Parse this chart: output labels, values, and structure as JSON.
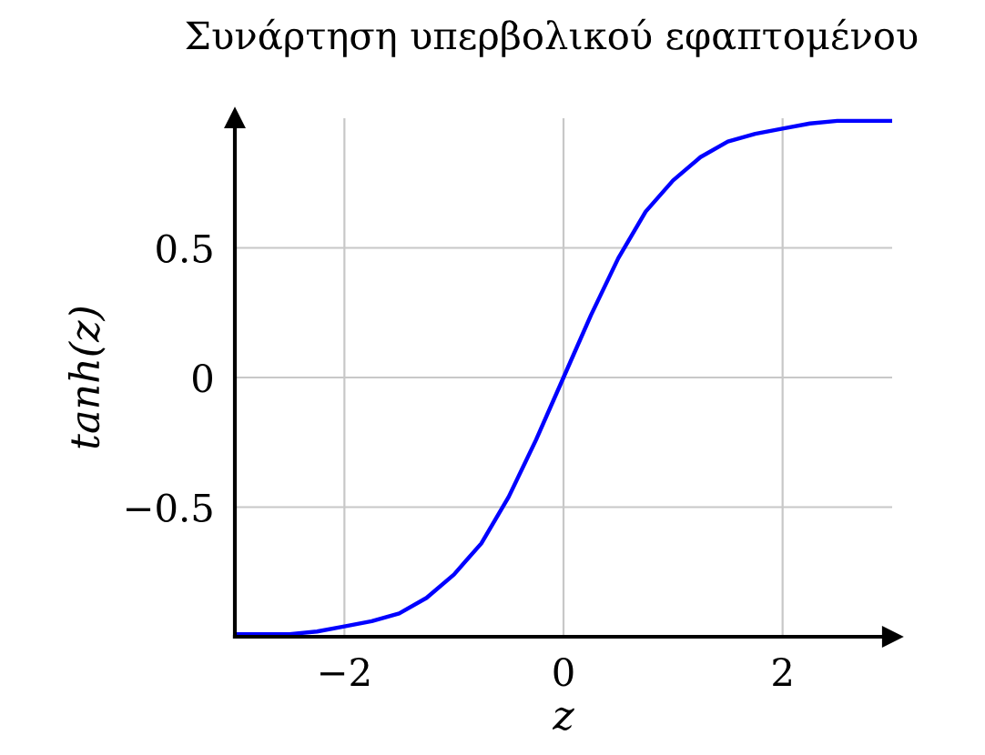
{
  "chart_data": {
    "type": "line",
    "title": "Συνάρτηση υπερβολικού εφαπτομένου",
    "xlabel": "z",
    "ylabel": "tanh(z)",
    "x": [
      -3,
      -2.75,
      -2.5,
      -2.25,
      -2,
      -1.75,
      -1.5,
      -1.25,
      -1,
      -0.75,
      -0.5,
      -0.25,
      0,
      0.25,
      0.5,
      0.75,
      1,
      1.25,
      1.5,
      1.75,
      2,
      2.25,
      2.5,
      2.75,
      3
    ],
    "series": [
      {
        "color": "#0000ff",
        "values": [
          -0.99,
          -0.99,
          -0.99,
          -0.98,
          -0.96,
          -0.94,
          -0.91,
          -0.85,
          -0.76,
          -0.64,
          -0.46,
          -0.24,
          0,
          0.24,
          0.46,
          0.64,
          0.76,
          0.85,
          0.91,
          0.94,
          0.96,
          0.98,
          0.99,
          0.99,
          0.99
        ]
      }
    ],
    "xlim": [
      -3,
      3
    ],
    "ylim": [
      -1,
      1
    ],
    "xticks": [
      {
        "value": -2,
        "label": "−2"
      },
      0,
      2
    ],
    "yticks": [
      {
        "value": -0.5,
        "label": "−0.5"
      },
      0,
      0.5
    ],
    "grid": true,
    "marker": "none",
    "line_style": "solid"
  }
}
